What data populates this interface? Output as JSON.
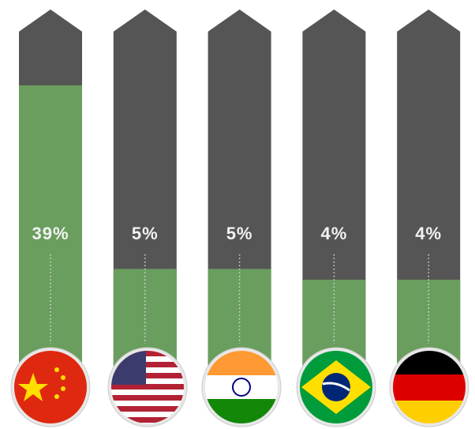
{
  "chart_data": {
    "type": "bar",
    "scale": "sqrt",
    "categories": [
      null,
      null,
      null,
      null,
      null
    ],
    "values": [
      39,
      5,
      5,
      4,
      4
    ],
    "value_labels": [
      "39%",
      "5%",
      "5%",
      "4%",
      "4%"
    ],
    "color": "#6a9e5e",
    "background_color": "#555555"
  }
}
